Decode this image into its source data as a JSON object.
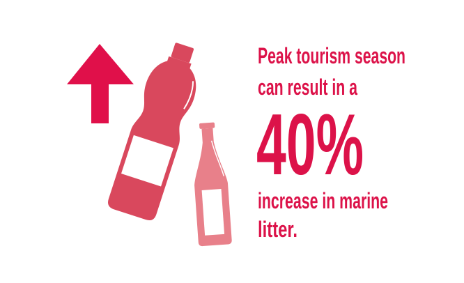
{
  "infographic": {
    "line1": "Peak tourism season",
    "line2": "can result in a",
    "statistic": "40%",
    "line3": "increase in marine",
    "line4": "litter."
  },
  "icons": {
    "arrow": "up-arrow-icon",
    "large_bottle": "plastic-bottle-icon",
    "small_bottle": "glass-bottle-icon"
  },
  "colors": {
    "text": "#dc1249",
    "arrow": "#e0104a",
    "large_bottle": "#d9485d",
    "small_bottle": "#e8808a",
    "background": "#ffffff"
  }
}
